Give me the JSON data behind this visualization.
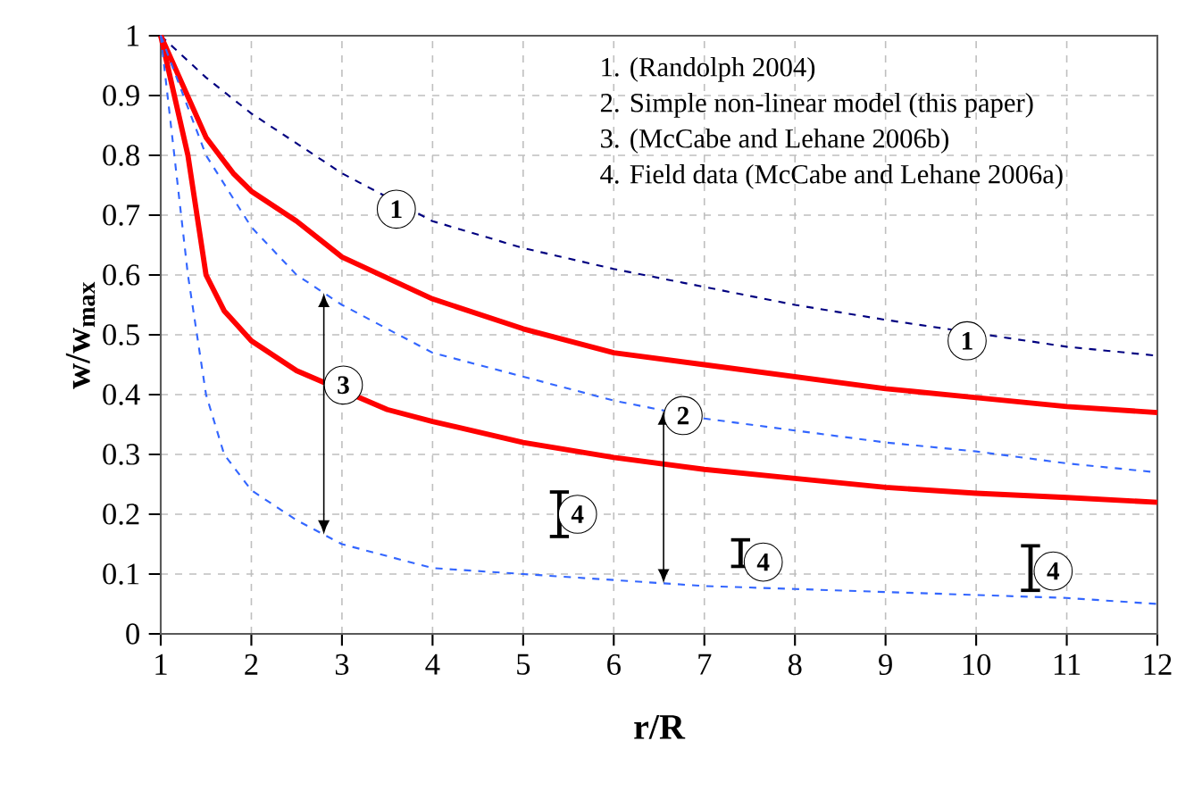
{
  "chart_data": {
    "type": "line",
    "xlabel": "r/R",
    "ylabel": "w/w$_{max}$",
    "xlim": [
      1,
      12
    ],
    "xticks": [
      1,
      2,
      3,
      4,
      5,
      6,
      7,
      8,
      9,
      10,
      11,
      12
    ],
    "ylim": [
      0,
      1
    ],
    "yticks": [
      0,
      0.1,
      0.2,
      0.3,
      0.4,
      0.5,
      0.6,
      0.7,
      0.8,
      0.9,
      1
    ],
    "grid": true,
    "marker": "none",
    "series": [
      {
        "color": "#000080",
        "line_style": "dashed",
        "x": [
          1,
          1.5,
          2,
          2.5,
          3,
          3.5,
          4,
          5,
          6,
          7,
          8,
          9,
          11,
          12
        ],
        "values": [
          1.0,
          0.93,
          0.87,
          0.82,
          0.77,
          0.73,
          0.69,
          0.645,
          0.61,
          0.58,
          0.55,
          0.525,
          0.48,
          0.465
        ]
      },
      {
        "color": "#ff0000",
        "line_style": "solid",
        "x": [
          1,
          1.5,
          1.8,
          2,
          2.5,
          3,
          4,
          5,
          6,
          7,
          8,
          9,
          10,
          11,
          12
        ],
        "values": [
          1.0,
          0.83,
          0.77,
          0.74,
          0.69,
          0.63,
          0.56,
          0.51,
          0.47,
          0.45,
          0.43,
          0.41,
          0.395,
          0.38,
          0.37
        ]
      },
      {
        "color": "#ff0000",
        "line_style": "solid",
        "x": [
          1,
          1.3,
          1.5,
          1.7,
          2,
          2.5,
          3.5,
          4,
          5,
          6,
          7,
          8,
          9,
          10,
          11,
          12
        ],
        "values": [
          1.0,
          0.8,
          0.6,
          0.54,
          0.49,
          0.44,
          0.375,
          0.355,
          0.32,
          0.295,
          0.275,
          0.26,
          0.245,
          0.235,
          0.228,
          0.22
        ]
      },
      {
        "color": "#3366ff",
        "line_style": "dashed",
        "x": [
          1,
          1.5,
          2,
          2.5,
          3,
          4,
          5,
          6,
          7,
          8,
          9,
          10,
          11,
          12
        ],
        "values": [
          1.0,
          0.8,
          0.68,
          0.6,
          0.55,
          0.47,
          0.43,
          0.39,
          0.36,
          0.34,
          0.32,
          0.305,
          0.285,
          0.27
        ]
      },
      {
        "color": "#3366ff",
        "line_style": "dashed",
        "x": [
          1,
          1.3,
          1.5,
          1.7,
          2,
          2.5,
          3,
          4,
          5,
          6,
          7,
          8,
          9,
          10,
          11,
          12
        ],
        "values": [
          1.0,
          0.6,
          0.4,
          0.3,
          0.24,
          0.19,
          0.15,
          0.11,
          0.1,
          0.09,
          0.08,
          0.075,
          0.07,
          0.065,
          0.06,
          0.05
        ]
      },
      {
        "color": "#000000",
        "line_style": "solid",
        "x": [
          5.4,
          5.4
        ],
        "values": [
          0.16,
          0.24
        ]
      },
      {
        "color": "#000000",
        "line_style": "solid",
        "x": [
          7.4,
          7.4
        ],
        "values": [
          0.11,
          0.16
        ]
      },
      {
        "color": "#000000",
        "line_style": "solid",
        "x": [
          10.6,
          10.6
        ],
        "values": [
          0.07,
          0.15
        ]
      }
    ],
    "annotations": [
      "1. (Randolph 2004)",
      "2. Simple non-linear model (this paper)",
      "3. (McCabe and Lehane 2006b)",
      "4. Field data (McCabe and Lehane 2006a)",
      {
        "text": "1",
        "x": 3.6,
        "y": 0.71
      },
      {
        "text": "1",
        "x": 9.9,
        "y": 0.49
      },
      {
        "text": "2",
        "x": 6.55,
        "y": 0.365
      },
      {
        "text": "3",
        "x": 2.8,
        "y": 0.416
      },
      {
        "text": "4",
        "x": 5.6,
        "y": 0.2
      },
      {
        "text": "4",
        "x": 7.65,
        "y": 0.12
      },
      {
        "text": "4",
        "x": 10.85,
        "y": 0.105
      }
    ]
  }
}
